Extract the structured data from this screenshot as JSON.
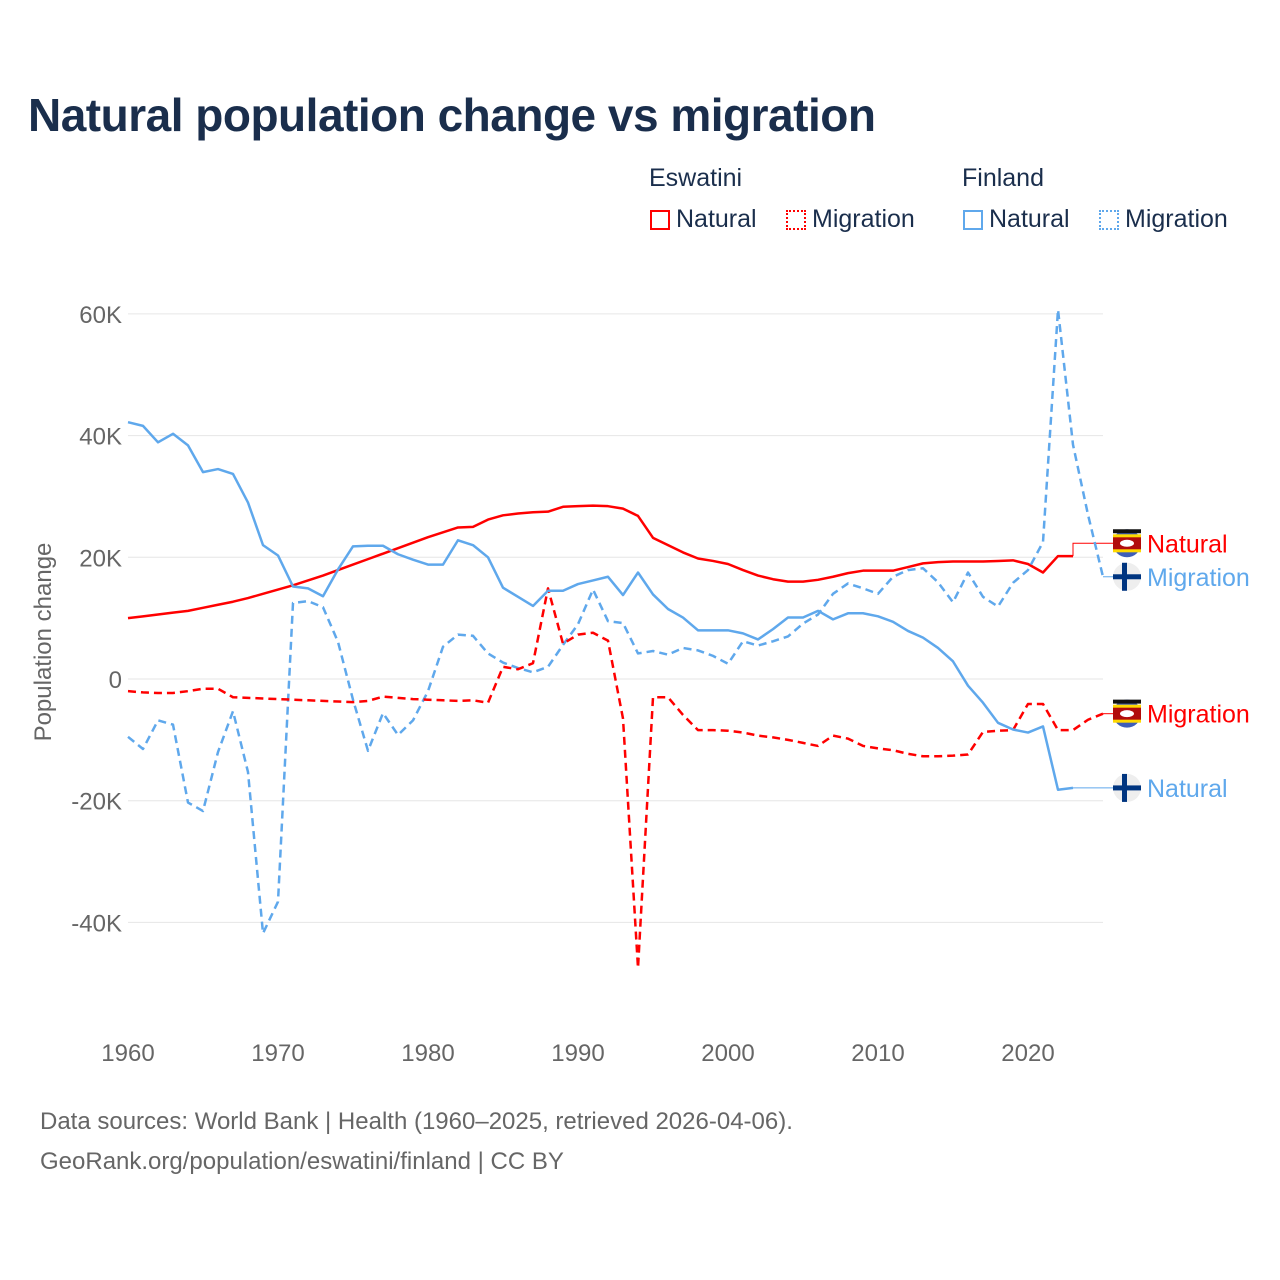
{
  "colors": {
    "eswatini": "#ff0000",
    "finland": "#5fa8ec",
    "grid": "#e6e6e6",
    "axis_text": "#666666",
    "title": "#1a2e4c"
  },
  "legend": {
    "groups": [
      {
        "name": "Eswatini",
        "items": [
          "Natural",
          "Migration"
        ]
      },
      {
        "name": "Finland",
        "items": [
          "Natural",
          "Migration"
        ]
      }
    ]
  },
  "footer": {
    "line1": "Data sources: World Bank | Health (1960–2025, retrieved 2026-04-06).",
    "line2": "GeoRank.org/population/eswatini/finland | CC BY"
  },
  "chart_data": {
    "type": "line",
    "title": "Natural population change vs migration",
    "xlabel": "",
    "ylabel": "Population change",
    "xlim": [
      1960,
      2025
    ],
    "ylim": [
      -50000,
      62000
    ],
    "x_ticks": [
      1960,
      1970,
      1980,
      1990,
      2000,
      2010,
      2020
    ],
    "y_ticks": [
      {
        "v": -40000,
        "label": "-40K"
      },
      {
        "v": -20000,
        "label": "-20K"
      },
      {
        "v": 0,
        "label": "0"
      },
      {
        "v": 20000,
        "label": "20K"
      },
      {
        "v": 40000,
        "label": "40K"
      },
      {
        "v": 60000,
        "label": "60K"
      }
    ],
    "grid": true,
    "legend_position": "top-right",
    "series": [
      {
        "name": "Eswatini Natural",
        "country": "Eswatini",
        "kind": "Natural",
        "style": "solid",
        "start_year": 1960,
        "end_label": "Natural",
        "label_value": 22300,
        "values": [
          10000,
          10300,
          10600,
          10900,
          11200,
          11700,
          12200,
          12700,
          13300,
          14000,
          14700,
          15400,
          16200,
          17000,
          17900,
          18800,
          19700,
          20600,
          21500,
          22400,
          23300,
          24100,
          24900,
          25000,
          26200,
          26900,
          27200,
          27400,
          27500,
          28300,
          28400,
          28500,
          28400,
          28000,
          26800,
          23200,
          22000,
          20800,
          19800,
          19400,
          18900,
          17900,
          17000,
          16400,
          16000,
          16000,
          16300,
          16800,
          17400,
          17800,
          17800,
          17800,
          18400,
          19000,
          19200,
          19300,
          19300,
          19300,
          19400,
          19500,
          18900,
          17500,
          20200,
          20200
        ]
      },
      {
        "name": "Finland Migration",
        "country": "Finland",
        "kind": "Migration",
        "style": "dashed",
        "start_year": 1960,
        "end_label": "Migration",
        "label_value": 16800,
        "values": [
          -9500,
          -11500,
          -6800,
          -7500,
          -20300,
          -21700,
          -12000,
          -5300,
          -15300,
          -41800,
          -36600,
          12500,
          12800,
          11800,
          6100,
          -3400,
          -11800,
          -5600,
          -9200,
          -6800,
          -2000,
          5300,
          7300,
          7100,
          4200,
          2700,
          1800,
          1100,
          2000,
          5600,
          9000,
          14700,
          9500,
          9200,
          4200,
          4600,
          4000,
          5100,
          4700,
          3800,
          2500,
          6200,
          5500,
          6200,
          7000,
          9100,
          10600,
          14000,
          15700,
          14900,
          14000,
          16800,
          17900,
          18200,
          15900,
          12600,
          17500,
          13500,
          11900,
          15800,
          17900,
          22500,
          60700,
          38500,
          27000,
          16800
        ]
      },
      {
        "name": "Eswatini Migration",
        "country": "Eswatini",
        "kind": "Migration",
        "style": "dashed",
        "start_year": 1960,
        "end_label": "Migration",
        "label_value": -5700,
        "values": [
          -2000,
          -2200,
          -2300,
          -2300,
          -2000,
          -1600,
          -1600,
          -3000,
          -3100,
          -3200,
          -3300,
          -3400,
          -3500,
          -3600,
          -3700,
          -3800,
          -3600,
          -2900,
          -3100,
          -3300,
          -3400,
          -3500,
          -3600,
          -3500,
          -3900,
          2000,
          1600,
          2600,
          14900,
          5800,
          7300,
          7600,
          6300,
          -6500,
          -47500,
          -3000,
          -3000,
          -5900,
          -8400,
          -8400,
          -8500,
          -8800,
          -9300,
          -9600,
          -10000,
          -10500,
          -11000,
          -9300,
          -9800,
          -11000,
          -11400,
          -11700,
          -12300,
          -12700,
          -12700,
          -12600,
          -12400,
          -8700,
          -8500,
          -8400,
          -4100,
          -4100,
          -8400,
          -8400,
          -6700,
          -5700
        ]
      },
      {
        "name": "Finland Natural",
        "country": "Finland",
        "kind": "Natural",
        "style": "solid",
        "start_year": 1960,
        "end_label": "Natural",
        "label_value": -17900,
        "values": [
          42200,
          41600,
          38900,
          40300,
          38400,
          34000,
          34500,
          33700,
          29000,
          22000,
          20300,
          15200,
          14900,
          13600,
          18000,
          21800,
          21900,
          21900,
          20500,
          19600,
          18800,
          18800,
          22800,
          22000,
          20000,
          15000,
          13500,
          12000,
          14500,
          14500,
          15600,
          16200,
          16800,
          13800,
          17500,
          13900,
          11500,
          10100,
          8000,
          8000,
          8000,
          7500,
          6500,
          8200,
          10100,
          10100,
          11200,
          9800,
          10800,
          10800,
          10300,
          9400,
          7900,
          6800,
          5100,
          2900,
          -1100,
          -3900,
          -7200,
          -8300,
          -8800,
          -7800,
          -18200,
          -17900
        ]
      }
    ]
  }
}
